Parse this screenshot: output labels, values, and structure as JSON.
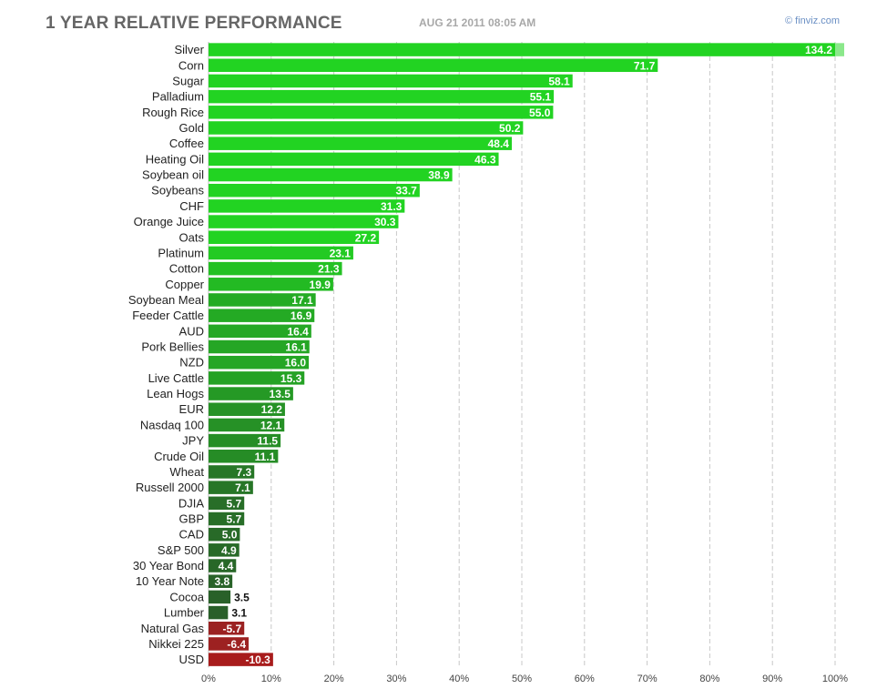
{
  "header": {
    "title": "1 YEAR RELATIVE PERFORMANCE",
    "timestamp": "AUG 21 2011 08:05 AM",
    "brand": "finviz.com"
  },
  "chart_data": {
    "type": "bar",
    "orientation": "horizontal",
    "title": "1 YEAR RELATIVE PERFORMANCE",
    "xlabel": "",
    "ylabel": "",
    "xlim": [
      0,
      100
    ],
    "grid": true,
    "x_ticks": [
      "0%",
      "10%",
      "20%",
      "30%",
      "40%",
      "50%",
      "60%",
      "70%",
      "80%",
      "90%",
      "100%"
    ],
    "x_tick_values": [
      0,
      10,
      20,
      30,
      40,
      50,
      60,
      70,
      80,
      90,
      100
    ],
    "categories": [
      "Silver",
      "Corn",
      "Sugar",
      "Palladium",
      "Rough Rice",
      "Gold",
      "Coffee",
      "Heating Oil",
      "Soybean oil",
      "Soybeans",
      "CHF",
      "Orange Juice",
      "Oats",
      "Platinum",
      "Cotton",
      "Copper",
      "Soybean Meal",
      "Feeder Cattle",
      "AUD",
      "Pork Bellies",
      "NZD",
      "Live Cattle",
      "Lean Hogs",
      "EUR",
      "Nasdaq 100",
      "JPY",
      "Crude Oil",
      "Wheat",
      "Russell 2000",
      "DJIA",
      "GBP",
      "CAD",
      "S&P 500",
      "30 Year Bond",
      "10 Year Note",
      "Cocoa",
      "Lumber",
      "Natural Gas",
      "Nikkei 225",
      "USD"
    ],
    "values": [
      134.2,
      71.7,
      58.1,
      55.1,
      55.0,
      50.2,
      48.4,
      46.3,
      38.9,
      33.7,
      31.3,
      30.3,
      27.2,
      23.1,
      21.3,
      19.9,
      17.1,
      16.9,
      16.4,
      16.1,
      16.0,
      15.3,
      13.5,
      12.2,
      12.1,
      11.5,
      11.1,
      7.3,
      7.1,
      5.7,
      5.7,
      5.0,
      4.9,
      4.4,
      3.8,
      3.5,
      3.1,
      -5.7,
      -6.4,
      -10.3
    ],
    "value_labels": [
      "134.2",
      "71.7",
      "58.1",
      "55.1",
      "55.0",
      "50.2",
      "48.4",
      "46.3",
      "38.9",
      "33.7",
      "31.3",
      "30.3",
      "27.2",
      "23.1",
      "21.3",
      "19.9",
      "17.1",
      "16.9",
      "16.4",
      "16.1",
      "16.0",
      "15.3",
      "13.5",
      "12.2",
      "12.1",
      "11.5",
      "11.1",
      "7.3",
      "7.1",
      "5.7",
      "5.7",
      "5.0",
      "4.9",
      "4.4",
      "3.8",
      "3.5",
      "3.1",
      "-5.7",
      "-6.4",
      "-10.3"
    ],
    "colors": {
      "positive_strong": "#22d322",
      "positive_weak": "#2a4a2a",
      "negative_weak": "#8a2a2a",
      "negative_strong": "#a81c1c",
      "overflow_tip": "#8be88b",
      "grid": "#c8c8c8"
    }
  }
}
